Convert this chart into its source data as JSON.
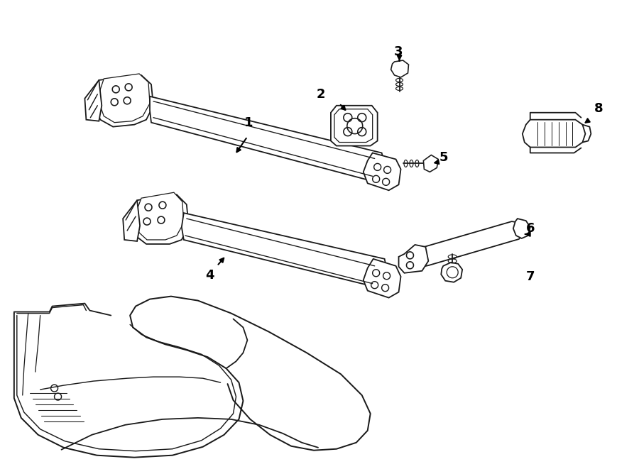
{
  "background_color": "#ffffff",
  "line_color": "#1a1a1a",
  "line_width": 1.3,
  "fig_width": 9.0,
  "fig_height": 6.61,
  "dpi": 100,
  "font_size": 13,
  "font_weight": "bold",
  "labels": {
    "1": [
      0.378,
      0.735,
      0.355,
      0.7
    ],
    "2": [
      0.51,
      0.785,
      0.498,
      0.757
    ],
    "3": [
      0.58,
      0.87,
      0.572,
      0.842
    ],
    "4": [
      0.318,
      0.458,
      0.322,
      0.488
    ],
    "5": [
      0.638,
      0.703,
      0.612,
      0.703
    ],
    "6": [
      0.763,
      0.548,
      0.732,
      0.548
    ],
    "7": [
      0.763,
      0.462,
      0.73,
      0.462
    ],
    "8": [
      0.858,
      0.815,
      0.843,
      0.788
    ]
  }
}
